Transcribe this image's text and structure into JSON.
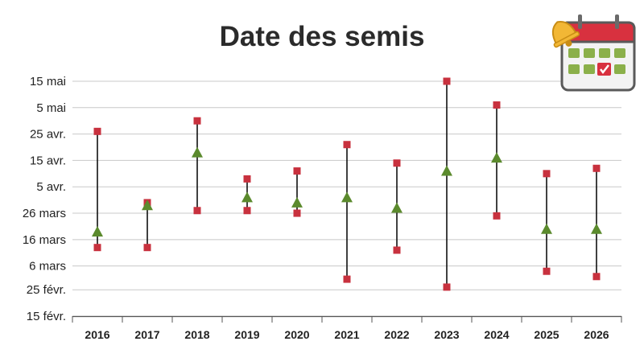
{
  "chart_data": {
    "type": "range-dot",
    "title": "Date des semis",
    "xlabel": "",
    "ylabel": "",
    "y_tick_labels": [
      "15 févr.",
      "25 févr.",
      "6 mars",
      "16 mars",
      "26 mars",
      "5 avr.",
      "15 avr.",
      "25 avr.",
      "5 mai",
      "15 mai"
    ],
    "y_tick_day": [
      46,
      56,
      65,
      75,
      85,
      95,
      105,
      115,
      125,
      135
    ],
    "ylim_day": [
      46,
      135
    ],
    "grid": true,
    "categories": [
      "2016",
      "2017",
      "2018",
      "2019",
      "2020",
      "2021",
      "2022",
      "2023",
      "2024",
      "2025",
      "2026"
    ],
    "series": [
      {
        "marker": "square",
        "role": "earliest",
        "values": [
          72,
          72,
          86,
          86,
          85,
          60,
          71,
          57,
          84,
          63,
          61
        ]
      },
      {
        "marker": "square",
        "role": "latest",
        "values": [
          116,
          89,
          120,
          98,
          101,
          111,
          104,
          135,
          126,
          100,
          102
        ]
      },
      {
        "marker": "triangle",
        "role": "middle",
        "values": [
          78,
          88,
          108,
          91,
          89,
          91,
          87,
          101,
          106,
          79,
          79
        ]
      }
    ],
    "colors": {
      "square": "#c8313e",
      "triangle": "#5b8a2d",
      "line": "#111111",
      "grid": "#c8c8c8",
      "axis": "#555555"
    }
  },
  "icon": {
    "name": "calendar-bell-icon"
  }
}
